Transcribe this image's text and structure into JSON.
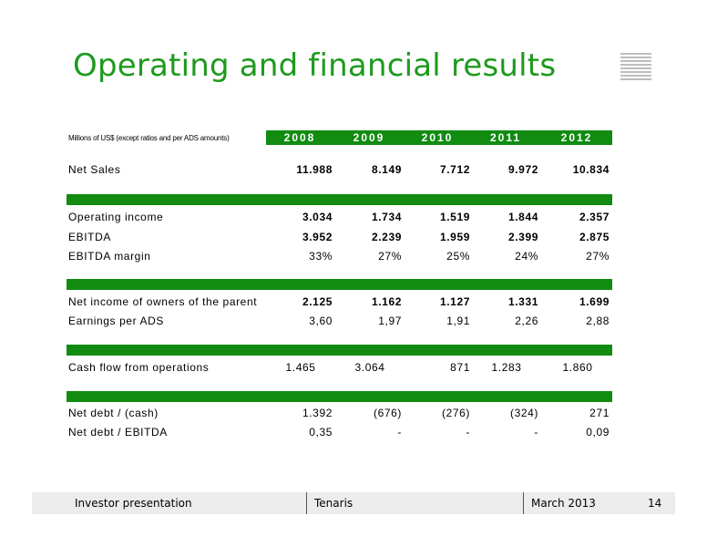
{
  "title": "Operating and financial results",
  "units_note": "Millions of US$ (except ratios and per ADS amounts)",
  "years": [
    "2008",
    "2009",
    "2010",
    "2011",
    "2012"
  ],
  "rows": {
    "net_sales": {
      "label": "Net Sales",
      "values": [
        "11.988",
        "8.149",
        "7.712",
        "9.972",
        "10.834"
      ]
    },
    "operating_income": {
      "label": "Operating income",
      "values": [
        "3.034",
        "1.734",
        "1.519",
        "1.844",
        "2.357"
      ]
    },
    "ebitda": {
      "label": "EBITDA",
      "values": [
        "3.952",
        "2.239",
        "1.959",
        "2.399",
        "2.875"
      ]
    },
    "ebitda_margin": {
      "label": "EBITDA margin",
      "values": [
        "33%",
        "27%",
        "25%",
        "24%",
        "27%"
      ]
    },
    "net_income": {
      "label": "Net income of owners of the parent",
      "values": [
        "2.125",
        "1.162",
        "1.127",
        "1.331",
        "1.699"
      ]
    },
    "eps": {
      "label": "Earnings per ADS",
      "values": [
        "3,60",
        "1,97",
        "1,91",
        "2,26",
        "2,88"
      ]
    },
    "cash_flow": {
      "label": "Cash flow from operations",
      "values": [
        "1.465",
        "3.064",
        "871",
        "1.283",
        "1.860"
      ]
    },
    "net_debt": {
      "label": "Net debt / (cash)",
      "values": [
        "1.392",
        "(676)",
        "(276)",
        "(324)",
        "271"
      ]
    },
    "net_debt_ebitda": {
      "label": "Net debt / EBITDA",
      "values": [
        "0,35",
        "-",
        "-",
        "-",
        "0,09"
      ]
    }
  },
  "footer": {
    "left": "Investor presentation",
    "center": "Tenaris",
    "date": "March 2013",
    "page": "14"
  },
  "colors": {
    "accent": "#1e9a1e",
    "bar": "#118c11"
  }
}
